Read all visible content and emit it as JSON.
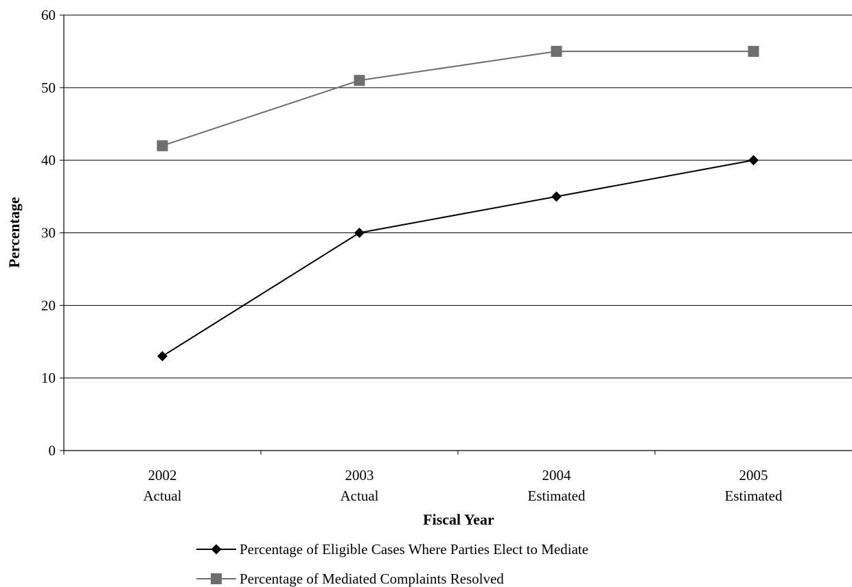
{
  "chart_data": {
    "type": "line",
    "title": "",
    "xlabel": "Fiscal Year",
    "ylabel": "Percentage",
    "categories": [
      [
        "2002",
        "Actual"
      ],
      [
        "2003",
        "Actual"
      ],
      [
        "2004",
        "Estimated"
      ],
      [
        "2005",
        "Estimated"
      ]
    ],
    "ylim": [
      0,
      60
    ],
    "yticks": [
      "0",
      "10",
      "20",
      "30",
      "40",
      "50",
      "60"
    ],
    "grid": "horizontal",
    "legend_position": "bottom",
    "series": [
      {
        "name": "Percentage of Eligible Cases Where Parties Elect to Mediate",
        "values": [
          13,
          30,
          35,
          40
        ],
        "marker": "diamond",
        "color": "#000000"
      },
      {
        "name": "Percentage of Mediated Complaints Resolved",
        "values": [
          42,
          51,
          55,
          55
        ],
        "marker": "square",
        "color": "#6e6e6e"
      }
    ]
  }
}
